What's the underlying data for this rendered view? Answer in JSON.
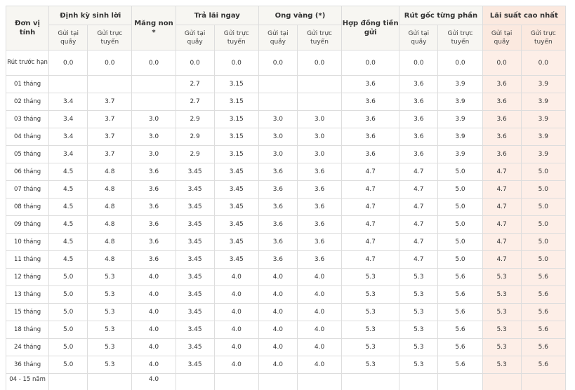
{
  "header": {
    "unit": "Đơn vị tính",
    "groups": {
      "dinh_ky": "Định kỳ sinh lời",
      "mang_non": "Măng non *",
      "tra_lai_ngay": "Trả lãi ngay",
      "ong_vang": "Ong vàng (*)",
      "hop_dong": "Hợp đồng tiền gửi",
      "rut_goc": "Rút gốc từng phần",
      "lai_suat_cao_nhat": "Lãi suất cao nhất"
    },
    "counter": "Gửi tại quầy",
    "online": "Gửi trực tuyến"
  },
  "colors": {
    "header_bg": "#f7f6f2",
    "highlight_bg": "#fdeee7",
    "border": "#dddddd"
  },
  "rows": [
    {
      "term": "Rút trước hạn",
      "v": [
        "0.0",
        "0.0",
        "0.0",
        "0.0",
        "0.0",
        "0.0",
        "0.0",
        "0.0",
        "0.0",
        "0.0",
        "0.0",
        "0.0"
      ]
    },
    {
      "term": "01 tháng",
      "v": [
        "",
        "",
        "",
        "2.7",
        "3.15",
        "",
        "",
        "3.6",
        "3.6",
        "3.9",
        "3.6",
        "3.9"
      ]
    },
    {
      "term": "02 tháng",
      "v": [
        "3.4",
        "3.7",
        "",
        "2.7",
        "3.15",
        "",
        "",
        "3.6",
        "3.6",
        "3.9",
        "3.6",
        "3.9"
      ]
    },
    {
      "term": "03 tháng",
      "v": [
        "3.4",
        "3.7",
        "3.0",
        "2.9",
        "3.15",
        "3.0",
        "3.0",
        "3.6",
        "3.6",
        "3.9",
        "3.6",
        "3.9"
      ]
    },
    {
      "term": "04 tháng",
      "v": [
        "3.4",
        "3.7",
        "3.0",
        "2.9",
        "3.15",
        "3.0",
        "3.0",
        "3.6",
        "3.6",
        "3.9",
        "3.6",
        "3.9"
      ]
    },
    {
      "term": "05 tháng",
      "v": [
        "3.4",
        "3.7",
        "3.0",
        "2.9",
        "3.15",
        "3.0",
        "3.0",
        "3.6",
        "3.6",
        "3.9",
        "3.6",
        "3.9"
      ]
    },
    {
      "term": "06 tháng",
      "v": [
        "4.5",
        "4.8",
        "3.6",
        "3.45",
        "3.45",
        "3.6",
        "3.6",
        "4.7",
        "4.7",
        "5.0",
        "4.7",
        "5.0"
      ]
    },
    {
      "term": "07 tháng",
      "v": [
        "4.5",
        "4.8",
        "3.6",
        "3.45",
        "3.45",
        "3.6",
        "3.6",
        "4.7",
        "4.7",
        "5.0",
        "4.7",
        "5.0"
      ]
    },
    {
      "term": "08 tháng",
      "v": [
        "4.5",
        "4.8",
        "3.6",
        "3.45",
        "3.45",
        "3.6",
        "3.6",
        "4.7",
        "4.7",
        "5.0",
        "4.7",
        "5.0"
      ]
    },
    {
      "term": "09 tháng",
      "v": [
        "4.5",
        "4.8",
        "3.6",
        "3.45",
        "3.45",
        "3.6",
        "3.6",
        "4.7",
        "4.7",
        "5.0",
        "4.7",
        "5.0"
      ]
    },
    {
      "term": "10 tháng",
      "v": [
        "4.5",
        "4.8",
        "3.6",
        "3.45",
        "3.45",
        "3.6",
        "3.6",
        "4.7",
        "4.7",
        "5.0",
        "4.7",
        "5.0"
      ]
    },
    {
      "term": "11 tháng",
      "v": [
        "4.5",
        "4.8",
        "3.6",
        "3.45",
        "3.45",
        "3.6",
        "3.6",
        "4.7",
        "4.7",
        "5.0",
        "4.7",
        "5.0"
      ]
    },
    {
      "term": "12 tháng",
      "v": [
        "5.0",
        "5.3",
        "4.0",
        "3.45",
        "4.0",
        "4.0",
        "4.0",
        "5.3",
        "5.3",
        "5.6",
        "5.3",
        "5.6"
      ]
    },
    {
      "term": "13 tháng",
      "v": [
        "5.0",
        "5.3",
        "4.0",
        "3.45",
        "4.0",
        "4.0",
        "4.0",
        "5.3",
        "5.3",
        "5.6",
        "5.3",
        "5.6"
      ]
    },
    {
      "term": "15 tháng",
      "v": [
        "5.0",
        "5.3",
        "4.0",
        "3.45",
        "4.0",
        "4.0",
        "4.0",
        "5.3",
        "5.3",
        "5.6",
        "5.3",
        "5.6"
      ]
    },
    {
      "term": "18 tháng",
      "v": [
        "5.0",
        "5.3",
        "4.0",
        "3.45",
        "4.0",
        "4.0",
        "4.0",
        "5.3",
        "5.3",
        "5.6",
        "5.3",
        "5.6"
      ]
    },
    {
      "term": "24 tháng",
      "v": [
        "5.0",
        "5.3",
        "4.0",
        "3.45",
        "4.0",
        "4.0",
        "4.0",
        "5.3",
        "5.3",
        "5.6",
        "5.3",
        "5.6"
      ]
    },
    {
      "term": "36 tháng",
      "v": [
        "5.0",
        "5.3",
        "4.0",
        "3.45",
        "4.0",
        "4.0",
        "4.0",
        "5.3",
        "5.3",
        "5.6",
        "5.3",
        "5.6"
      ]
    },
    {
      "term": "04 - 15 năm",
      "v": [
        "",
        "",
        "4.0",
        "",
        "",
        "",
        "",
        "",
        "",
        "",
        "",
        ""
      ]
    }
  ]
}
